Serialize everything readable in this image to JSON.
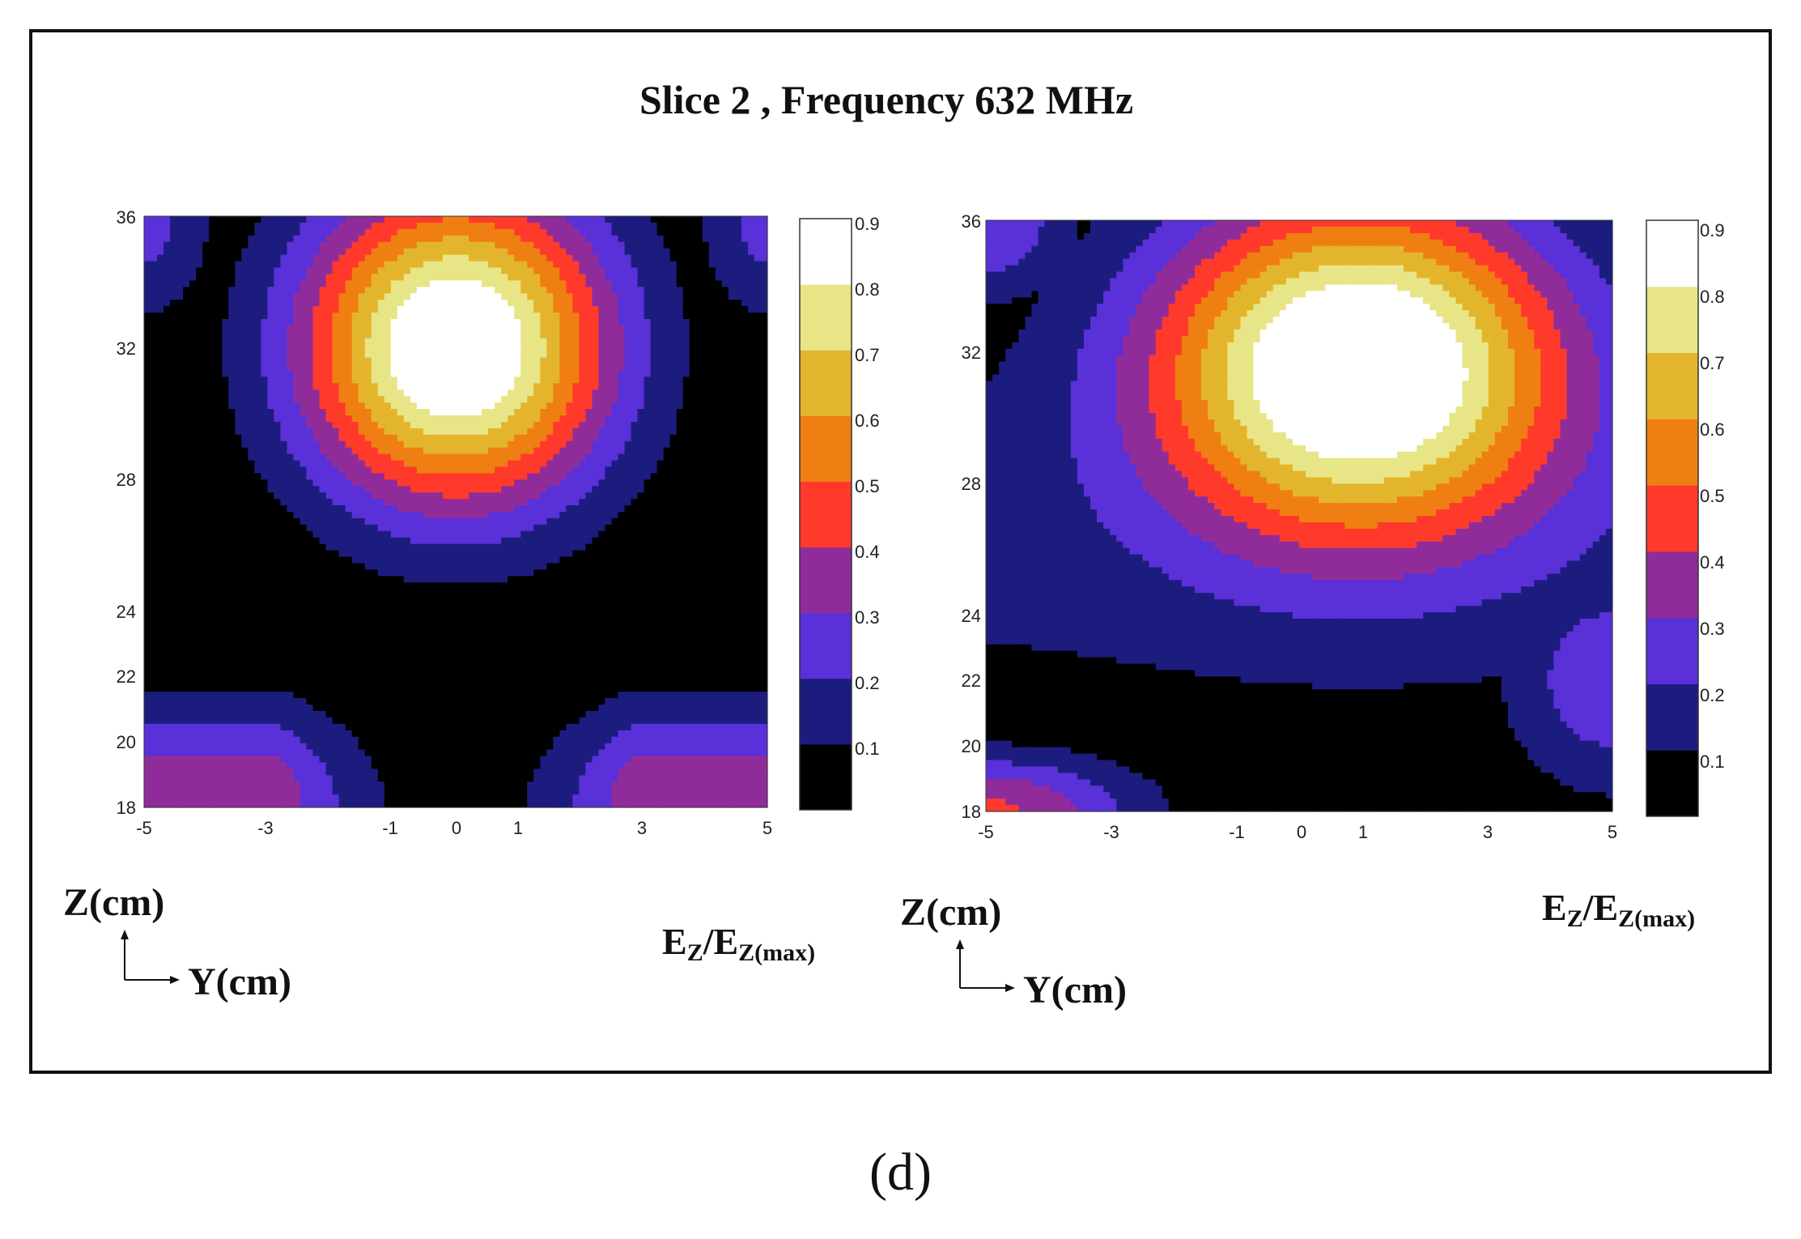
{
  "chart_data": {
    "type": "contour",
    "title": "Slice 2 , Frequency 632 MHz",
    "subfigure_label": "(d)",
    "levels": [
      0.1,
      0.2,
      0.3,
      0.4,
      0.5,
      0.6,
      0.7,
      0.8,
      0.9
    ],
    "colormap": [
      "#000000",
      "#1c1c7e",
      "#5a30d8",
      "#902c9a",
      "#ff3a2a",
      "#ef7f12",
      "#e3b52d",
      "#e8e587",
      "#ffffff"
    ],
    "panels": [
      {
        "name": "left",
        "xlabel": "Y(cm)",
        "ylabel": "Z(cm)",
        "colorbar_label": "EZ/EZ(max)",
        "colorbar_label_main": "E",
        "colorbar_label_sub1": "Z",
        "colorbar_label_slash": "/E",
        "colorbar_label_sub2": "Z(max)",
        "xlim": [
          -5,
          5
        ],
        "ylim": [
          18,
          36
        ],
        "xticks": [
          "-5",
          "-3",
          "-1",
          "0",
          "1",
          "3",
          "5"
        ],
        "yticks": [
          "36",
          "32",
          "28",
          "24",
          "22",
          "20",
          "18"
        ],
        "colorbar_ticks": [
          "0.9",
          "0.8",
          "0.7",
          "0.6",
          "0.5",
          "0.4",
          "0.3",
          "0.2",
          "0.1"
        ],
        "peak": {
          "y": 0,
          "z": 32,
          "value": 0.95
        }
      },
      {
        "name": "right",
        "xlabel": "Y(cm)",
        "ylabel": "Z(cm)",
        "colorbar_label": "EZ/EZ(max)",
        "colorbar_label_main": "E",
        "colorbar_label_sub1": "Z",
        "colorbar_label_slash": "/E",
        "colorbar_label_sub2": "Z(max)",
        "xlim": [
          -5,
          5
        ],
        "ylim": [
          18,
          36
        ],
        "xticks": [
          "-5",
          "-3",
          "-1",
          "0",
          "1",
          "3",
          "5"
        ],
        "yticks": [
          "36",
          "32",
          "28",
          "24",
          "22",
          "20",
          "18"
        ],
        "colorbar_ticks": [
          "0.9",
          "0.8",
          "0.7",
          "0.6",
          "0.5",
          "0.4",
          "0.3",
          "0.2",
          "0.1"
        ],
        "peak": {
          "y": 1,
          "z": 32,
          "value": 0.95
        }
      }
    ]
  }
}
